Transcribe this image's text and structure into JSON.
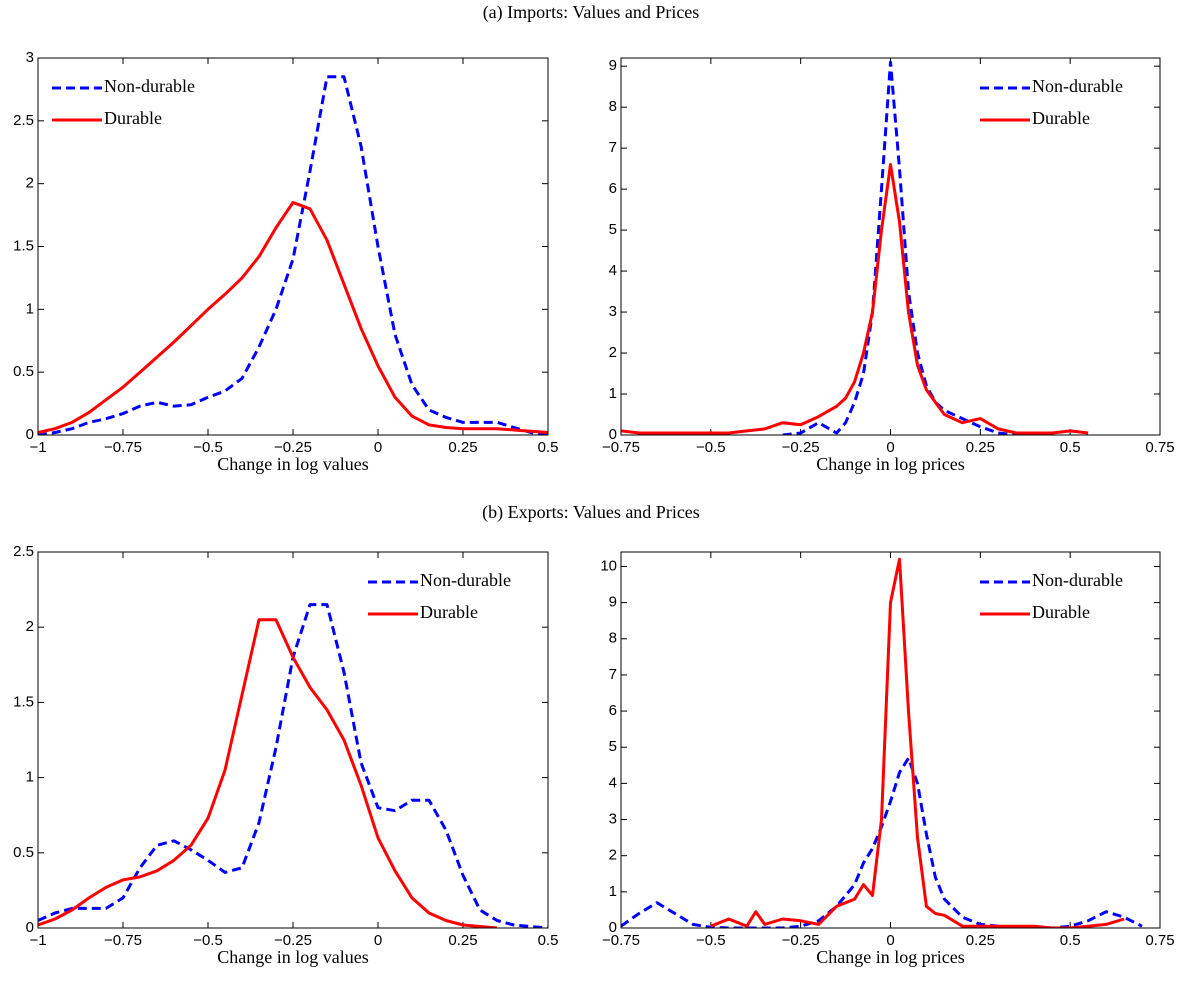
{
  "headings": [
    "(a) Imports: Values and Prices",
    "(b) Exports: Values and Prices"
  ],
  "chart_data": [
    {
      "type": "line",
      "x_label": "Change in log values",
      "legend": "upper left",
      "xlim": [
        -1,
        0.5
      ],
      "ylim": [
        0,
        3
      ],
      "xticks": [
        {
          "value": -1,
          "label": "−1"
        },
        {
          "value": -0.75,
          "label": "−0.75"
        },
        {
          "value": -0.5,
          "label": "−0.5"
        },
        {
          "value": -0.25,
          "label": "−0.25"
        },
        0,
        0.25,
        0.5
      ],
      "yticks": [
        0,
        0.5,
        1,
        1.5,
        2,
        2.5,
        3
      ],
      "x": [
        -1,
        -0.95,
        -0.9,
        -0.85,
        -0.8,
        -0.75,
        -0.7,
        -0.65,
        -0.6,
        -0.55,
        -0.5,
        -0.45,
        -0.4,
        -0.35,
        -0.3,
        -0.25,
        -0.2,
        -0.15,
        -0.1,
        -0.05,
        0,
        0.05,
        0.1,
        0.15,
        0.2,
        0.25,
        0.3,
        0.35,
        0.4,
        0.45,
        0.5
      ],
      "series": [
        {
          "name": "Non-durable",
          "color": "#0000ff",
          "dashed": true,
          "values": [
            0,
            0.02,
            0.05,
            0.1,
            0.13,
            0.17,
            0.23,
            0.26,
            0.23,
            0.24,
            0.3,
            0.35,
            0.45,
            0.7,
            1.0,
            1.4,
            2.1,
            2.85,
            2.85,
            2.3,
            1.5,
            0.8,
            0.4,
            0.2,
            0.14,
            0.1,
            0.1,
            0.1,
            0.06,
            0.02,
            0
          ]
        },
        {
          "name": "Durable",
          "color": "#ff0000",
          "dashed": false,
          "values": [
            0.02,
            0.05,
            0.1,
            0.18,
            0.28,
            0.38,
            0.5,
            0.62,
            0.74,
            0.87,
            1.0,
            1.12,
            1.25,
            1.42,
            1.65,
            1.85,
            1.8,
            1.55,
            1.2,
            0.85,
            0.55,
            0.3,
            0.15,
            0.08,
            0.06,
            0.05,
            0.05,
            0.05,
            0.04,
            0.03,
            0.02
          ]
        }
      ]
    },
    {
      "type": "line",
      "x_label": "Change in log prices",
      "legend": "upper right",
      "xlim": [
        -0.75,
        0.75
      ],
      "ylim": [
        0,
        9.2
      ],
      "xticks": [
        {
          "value": -0.75,
          "label": "−0.75"
        },
        {
          "value": -0.5,
          "label": "−0.5"
        },
        {
          "value": -0.25,
          "label": "−0.25"
        },
        0,
        0.25,
        0.5,
        0.75
      ],
      "yticks": [
        0,
        1,
        2,
        3,
        4,
        5,
        6,
        7,
        8,
        9
      ],
      "x": [
        -0.75,
        -0.7,
        -0.6,
        -0.5,
        -0.45,
        -0.4,
        -0.35,
        -0.3,
        -0.25,
        -0.2,
        -0.15,
        -0.125,
        -0.1,
        -0.075,
        -0.05,
        -0.025,
        0,
        0.025,
        0.05,
        0.075,
        0.1,
        0.125,
        0.15,
        0.2,
        0.25,
        0.3,
        0.35,
        0.4,
        0.45,
        0.5,
        0.55
      ],
      "series": [
        {
          "name": "Non-durable",
          "color": "#0000ff",
          "dashed": true,
          "values": [
            null,
            null,
            null,
            null,
            null,
            null,
            null,
            0,
            0.05,
            0.3,
            0.05,
            0.3,
            0.8,
            1.5,
            3.0,
            6.0,
            9.1,
            6.5,
            3.5,
            2.0,
            1.2,
            0.8,
            0.6,
            0.4,
            0.2,
            0.05,
            0,
            null,
            null,
            null,
            null
          ]
        },
        {
          "name": "Durable",
          "color": "#ff0000",
          "dashed": false,
          "values": [
            0.1,
            0.05,
            0.05,
            0.05,
            0.05,
            0.1,
            0.15,
            0.3,
            0.25,
            0.45,
            0.7,
            0.9,
            1.3,
            2.0,
            3.0,
            5.0,
            6.6,
            5.2,
            3.0,
            1.7,
            1.1,
            0.8,
            0.5,
            0.3,
            0.4,
            0.15,
            0.05,
            0.05,
            0.05,
            0.1,
            0.05
          ]
        }
      ]
    },
    {
      "type": "line",
      "x_label": "Change in log values",
      "legend": "upper right",
      "xlim": [
        -1,
        0.5
      ],
      "ylim": [
        0,
        2.5
      ],
      "xticks": [
        {
          "value": -1,
          "label": "−1"
        },
        {
          "value": -0.75,
          "label": "−0.75"
        },
        {
          "value": -0.5,
          "label": "−0.5"
        },
        {
          "value": -0.25,
          "label": "−0.25"
        },
        0,
        0.25,
        0.5
      ],
      "yticks": [
        0,
        0.5,
        1,
        1.5,
        2,
        2.5
      ],
      "x": [
        -1,
        -0.95,
        -0.9,
        -0.85,
        -0.8,
        -0.75,
        -0.7,
        -0.65,
        -0.6,
        -0.55,
        -0.5,
        -0.45,
        -0.4,
        -0.35,
        -0.3,
        -0.25,
        -0.2,
        -0.15,
        -0.1,
        -0.05,
        0,
        0.05,
        0.1,
        0.15,
        0.2,
        0.25,
        0.3,
        0.35,
        0.4,
        0.45,
        0.5
      ],
      "series": [
        {
          "name": "Non-durable",
          "color": "#0000ff",
          "dashed": true,
          "values": [
            0.05,
            0.1,
            0.13,
            0.13,
            0.13,
            0.2,
            0.4,
            0.55,
            0.58,
            0.52,
            0.45,
            0.37,
            0.4,
            0.7,
            1.2,
            1.8,
            2.15,
            2.15,
            1.7,
            1.1,
            0.8,
            0.78,
            0.85,
            0.85,
            0.65,
            0.35,
            0.12,
            0.05,
            0.02,
            0.01,
            0
          ]
        },
        {
          "name": "Durable",
          "color": "#ff0000",
          "dashed": false,
          "values": [
            0.02,
            0.06,
            0.12,
            0.2,
            0.27,
            0.32,
            0.34,
            0.38,
            0.45,
            0.55,
            0.73,
            1.05,
            1.55,
            2.05,
            2.05,
            1.8,
            1.6,
            1.45,
            1.25,
            0.95,
            0.6,
            0.38,
            0.2,
            0.1,
            0.05,
            0.02,
            0.01,
            0,
            null,
            null,
            null
          ]
        }
      ]
    },
    {
      "type": "line",
      "x_label": "Change in log prices",
      "legend": "upper right",
      "xlim": [
        -0.75,
        0.75
      ],
      "ylim": [
        0,
        10.4
      ],
      "xticks": [
        {
          "value": -0.75,
          "label": "−0.75"
        },
        {
          "value": -0.5,
          "label": "−0.5"
        },
        {
          "value": -0.25,
          "label": "−0.25"
        },
        0,
        0.25,
        0.5,
        0.75
      ],
      "yticks": [
        0,
        1,
        2,
        3,
        4,
        5,
        6,
        7,
        8,
        9,
        10
      ],
      "x": [
        -0.75,
        -0.7,
        -0.65,
        -0.6,
        -0.55,
        -0.5,
        -0.45,
        -0.4,
        -0.375,
        -0.35,
        -0.3,
        -0.25,
        -0.2,
        -0.15,
        -0.1,
        -0.075,
        -0.05,
        -0.025,
        0,
        0.025,
        0.05,
        0.075,
        0.1,
        0.125,
        0.15,
        0.2,
        0.25,
        0.3,
        0.35,
        0.4,
        0.45,
        0.5,
        0.55,
        0.6,
        0.65,
        0.7
      ],
      "series": [
        {
          "name": "Non-durable",
          "color": "#0000ff",
          "dashed": true,
          "values": [
            0.05,
            0.4,
            0.7,
            0.4,
            0.1,
            0.02,
            0,
            0,
            0,
            0,
            0,
            0.05,
            0.2,
            0.6,
            1.2,
            1.8,
            2.2,
            2.8,
            3.5,
            4.3,
            4.7,
            4.0,
            2.6,
            1.4,
            0.8,
            0.3,
            0.1,
            0.05,
            0.02,
            0,
            0,
            0.05,
            0.2,
            0.45,
            0.3,
            0.05
          ]
        },
        {
          "name": "Durable",
          "color": "#ff0000",
          "dashed": false,
          "values": [
            null,
            null,
            null,
            null,
            null,
            0.05,
            0.25,
            0.05,
            0.45,
            0.1,
            0.25,
            0.2,
            0.1,
            0.6,
            0.8,
            1.2,
            0.9,
            3.0,
            9.0,
            10.2,
            6.0,
            2.5,
            0.6,
            0.4,
            0.35,
            0.05,
            0.05,
            0.05,
            0.05,
            0.05,
            0,
            0,
            0.05,
            0.1,
            0.25,
            null
          ]
        }
      ]
    }
  ]
}
